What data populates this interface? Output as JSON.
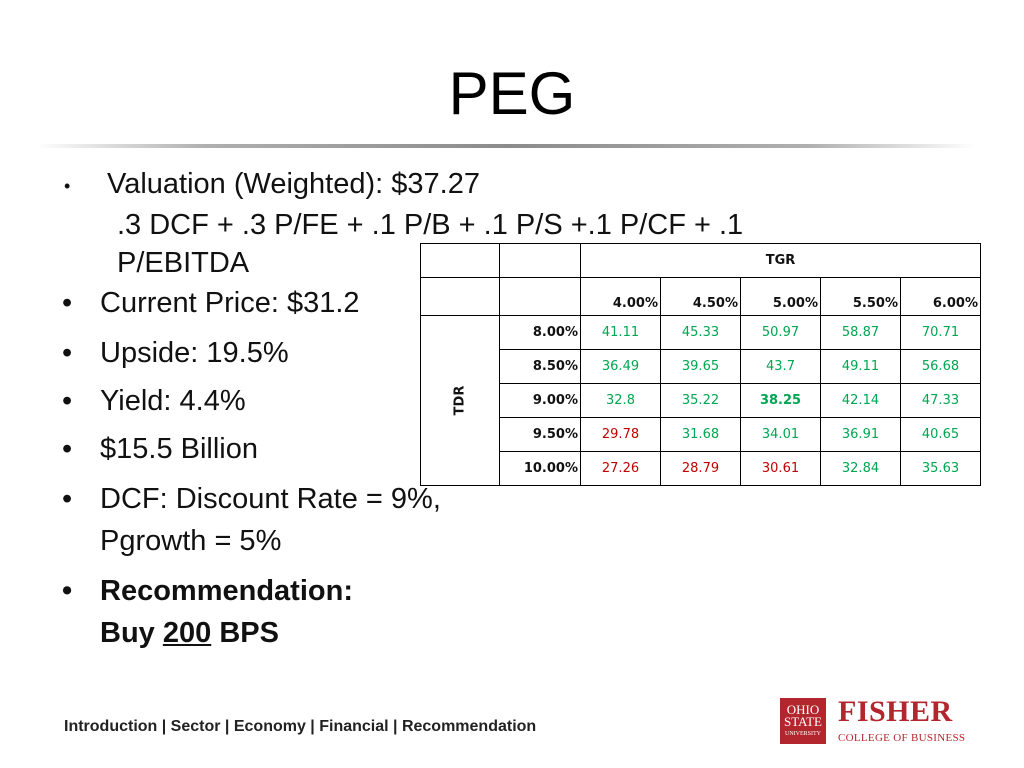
{
  "title": "PEG",
  "valuation": {
    "bullet": "•",
    "line1": "Valuation (Weighted): $37.27",
    "line2": ".3 DCF + .3 P/FE + .1 P/B + .1 P/S +.1 P/CF + .1 P/EBITDA"
  },
  "bullets": [
    {
      "text": "Current Price: $31.2"
    },
    {
      "text": "Upside: 19.5%"
    },
    {
      "text": "Yield: 4.4%"
    },
    {
      "text": "$15.5 Billion"
    },
    {
      "line1": "DCF: Discount Rate = 9%,",
      "line2": "Pgrowth = 5%"
    }
  ],
  "recommendation": {
    "line1": "Recommendation:",
    "buy": "Buy",
    "number": "200",
    "bps": "BPS"
  },
  "bullet_glyph": "•",
  "sensitivity_table": {
    "col_group_label": "TGR",
    "row_group_label": "TDR",
    "columns": [
      "4.00%",
      "4.50%",
      "5.00%",
      "5.50%",
      "6.00%"
    ],
    "rows": [
      {
        "label": "8.00%",
        "values": [
          "41.11",
          "45.33",
          "50.97",
          "58.87",
          "70.71"
        ],
        "colors": [
          "green",
          "green",
          "green",
          "green",
          "green"
        ]
      },
      {
        "label": "8.50%",
        "values": [
          "36.49",
          "39.65",
          "43.7",
          "49.11",
          "56.68"
        ],
        "colors": [
          "green",
          "green",
          "green",
          "green",
          "green"
        ]
      },
      {
        "label": "9.00%",
        "values": [
          "32.8",
          "35.22",
          "38.25",
          "42.14",
          "47.33"
        ],
        "colors": [
          "green",
          "green",
          "green-bold",
          "green",
          "green"
        ]
      },
      {
        "label": "9.50%",
        "values": [
          "29.78",
          "31.68",
          "34.01",
          "36.91",
          "40.65"
        ],
        "colors": [
          "red",
          "green",
          "green",
          "green",
          "green"
        ]
      },
      {
        "label": "10.00%",
        "values": [
          "27.26",
          "28.79",
          "30.61",
          "32.84",
          "35.63"
        ],
        "colors": [
          "red",
          "red",
          "red",
          "green",
          "green"
        ]
      }
    ],
    "green_color": "#00a651",
    "red_color": "#c00000"
  },
  "footer": "Introduction | Sector | Economy | Financial | Recommendation",
  "logo": {
    "seal_top": "THE",
    "seal_line1": "OHIO",
    "seal_line2": "STATE",
    "seal_line3": "UNIVERSITY",
    "name": "FISHER",
    "subtitle": "COLLEGE OF BUSINESS",
    "brand_color": "#b3262d"
  }
}
